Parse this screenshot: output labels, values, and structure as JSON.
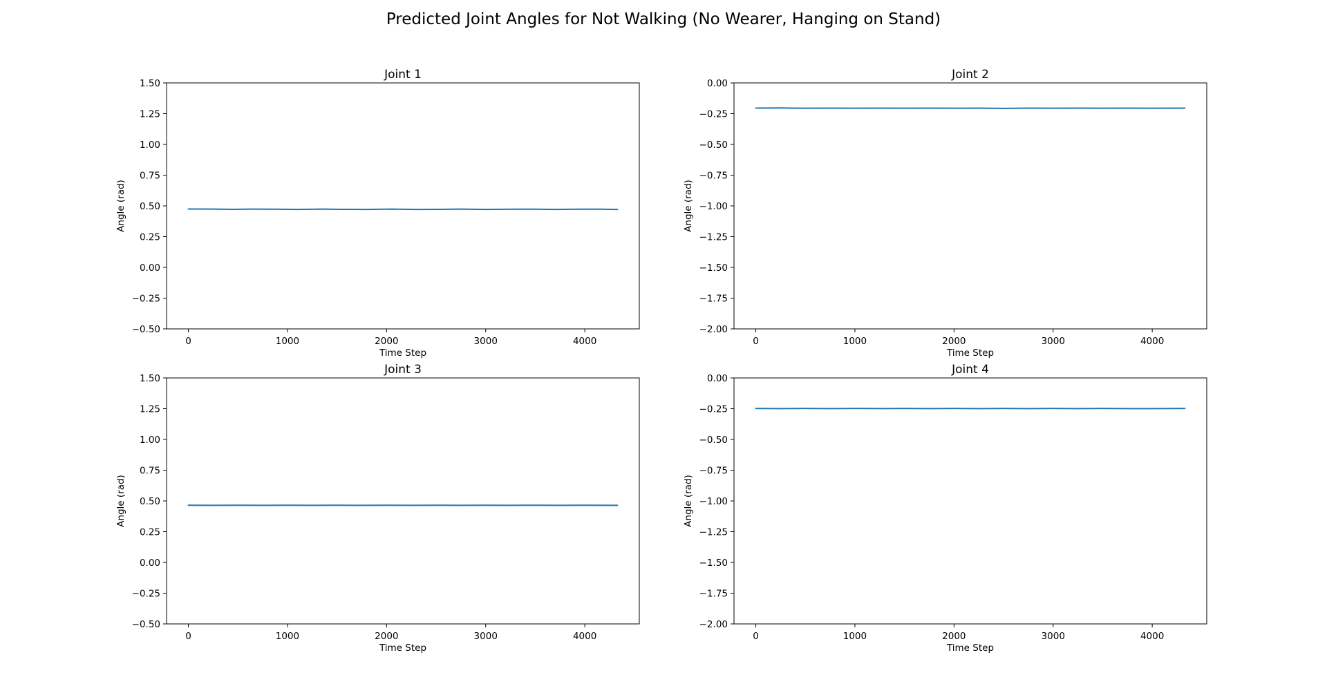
{
  "figure": {
    "title": "Predicted Joint Angles for Not Walking (No Wearer, Hanging on Stand)",
    "line_color": "#1f77b4"
  },
  "chart_data": [
    {
      "type": "line",
      "title": "Joint 1",
      "xlabel": "Time Step",
      "ylabel": "Angle (rad)",
      "xlim": [
        -220,
        4550
      ],
      "ylim": [
        -0.5,
        1.5
      ],
      "xticks": [
        0,
        1000,
        2000,
        3000,
        4000
      ],
      "xtick_labels": [
        "0",
        "1000",
        "2000",
        "3000",
        "4000"
      ],
      "yticks": [
        -0.5,
        -0.25,
        0.0,
        0.25,
        0.5,
        0.75,
        1.0,
        1.25,
        1.5
      ],
      "ytick_labels": [
        "−0.50",
        "−0.25",
        "0.00",
        "0.25",
        "0.50",
        "0.75",
        "1.00",
        "1.25",
        "1.50"
      ],
      "series": [
        {
          "x": [
            0,
            250,
            450,
            650,
            850,
            1100,
            1350,
            1550,
            1800,
            2050,
            2300,
            2550,
            2750,
            3000,
            3300,
            3500,
            3700,
            3950,
            4150,
            4330
          ],
          "y": [
            0.475,
            0.474,
            0.472,
            0.474,
            0.473,
            0.471,
            0.474,
            0.472,
            0.471,
            0.474,
            0.471,
            0.472,
            0.474,
            0.471,
            0.473,
            0.473,
            0.471,
            0.473,
            0.473,
            0.471
          ]
        }
      ]
    },
    {
      "type": "line",
      "title": "Joint 2",
      "xlabel": "Time Step",
      "ylabel": "Angle (rad)",
      "xlim": [
        -220,
        4550
      ],
      "ylim": [
        -2.0,
        0.0
      ],
      "xticks": [
        0,
        1000,
        2000,
        3000,
        4000
      ],
      "xtick_labels": [
        "0",
        "1000",
        "2000",
        "3000",
        "4000"
      ],
      "yticks": [
        -2.0,
        -1.75,
        -1.5,
        -1.25,
        -1.0,
        -0.75,
        -0.5,
        -0.25,
        0.0
      ],
      "ytick_labels": [
        "−2.00",
        "−1.75",
        "−1.50",
        "−1.25",
        "−1.00",
        "−0.75",
        "−0.50",
        "−0.25",
        "0.00"
      ],
      "series": [
        {
          "x": [
            0,
            250,
            500,
            750,
            1000,
            1250,
            1500,
            1750,
            2000,
            2250,
            2500,
            2750,
            3000,
            3250,
            3500,
            3750,
            4000,
            4330
          ],
          "y": [
            -0.205,
            -0.204,
            -0.206,
            -0.205,
            -0.206,
            -0.205,
            -0.206,
            -0.205,
            -0.206,
            -0.205,
            -0.207,
            -0.205,
            -0.206,
            -0.205,
            -0.206,
            -0.205,
            -0.206,
            -0.205
          ]
        }
      ]
    },
    {
      "type": "line",
      "title": "Joint 3",
      "xlabel": "Time Step",
      "ylabel": "Angle (rad)",
      "xlim": [
        -220,
        4550
      ],
      "ylim": [
        -0.5,
        1.5
      ],
      "xticks": [
        0,
        1000,
        2000,
        3000,
        4000
      ],
      "xtick_labels": [
        "0",
        "1000",
        "2000",
        "3000",
        "4000"
      ],
      "yticks": [
        -0.5,
        -0.25,
        0.0,
        0.25,
        0.5,
        0.75,
        1.0,
        1.25,
        1.5
      ],
      "ytick_labels": [
        "−0.50",
        "−0.25",
        "0.00",
        "0.25",
        "0.50",
        "0.75",
        "1.00",
        "1.25",
        "1.50"
      ],
      "series": [
        {
          "x": [
            0,
            250,
            500,
            750,
            1000,
            1250,
            1500,
            1750,
            2000,
            2250,
            2500,
            2750,
            3000,
            3250,
            3500,
            3750,
            4000,
            4330
          ],
          "y": [
            0.465,
            0.464,
            0.465,
            0.464,
            0.465,
            0.464,
            0.465,
            0.464,
            0.465,
            0.464,
            0.465,
            0.464,
            0.465,
            0.464,
            0.465,
            0.464,
            0.465,
            0.464
          ]
        }
      ]
    },
    {
      "type": "line",
      "title": "Joint 4",
      "xlabel": "Time Step",
      "ylabel": "Angle (rad)",
      "xlim": [
        -220,
        4550
      ],
      "ylim": [
        -2.0,
        0.0
      ],
      "xticks": [
        0,
        1000,
        2000,
        3000,
        4000
      ],
      "xtick_labels": [
        "0",
        "1000",
        "2000",
        "3000",
        "4000"
      ],
      "yticks": [
        -2.0,
        -1.75,
        -1.5,
        -1.25,
        -1.0,
        -0.75,
        -0.5,
        -0.25,
        0.0
      ],
      "ytick_labels": [
        "−2.00",
        "−1.75",
        "−1.50",
        "−1.25",
        "−1.00",
        "−0.75",
        "−0.50",
        "−0.25",
        "0.00"
      ],
      "series": [
        {
          "x": [
            0,
            250,
            500,
            750,
            1000,
            1250,
            1500,
            1750,
            2000,
            2250,
            2500,
            2750,
            3000,
            3250,
            3500,
            3750,
            4000,
            4330
          ],
          "y": [
            -0.248,
            -0.249,
            -0.248,
            -0.249,
            -0.248,
            -0.249,
            -0.248,
            -0.249,
            -0.248,
            -0.249,
            -0.248,
            -0.249,
            -0.248,
            -0.249,
            -0.248,
            -0.249,
            -0.249,
            -0.248
          ]
        }
      ]
    }
  ]
}
